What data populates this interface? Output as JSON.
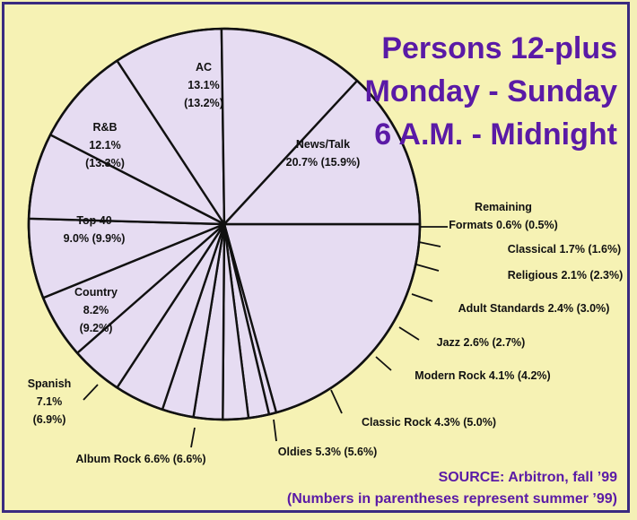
{
  "title_lines": [
    "Persons 12-plus",
    "Monday - Sunday",
    "6 A.M. - Midnight"
  ],
  "source_lines": [
    "SOURCE: Arbitron, fall ’99",
    "(Numbers in parentheses represent summer ’99)"
  ],
  "colors": {
    "slice_fill": "#e6dcf2",
    "title": "#5a1aa6",
    "background": "#f6f2b4",
    "border": "#3a2a80"
  },
  "chart_data": {
    "type": "pie",
    "series_names": [
      "fall ’99",
      "summer ’99"
    ],
    "slices": [
      {
        "name": "News/Talk",
        "value": 20.7,
        "summer": 15.9,
        "label_lines": [
          "News/Talk",
          "20.7% (15.9%)"
        ]
      },
      {
        "name": "Remaining Formats",
        "value": 0.6,
        "summer": 0.5,
        "label_lines": [
          "Remaining",
          "Formats 0.6% (0.5%)"
        ]
      },
      {
        "name": "Classical",
        "value": 1.7,
        "summer": 1.6,
        "label_lines": [
          "Classical 1.7% (1.6%)"
        ]
      },
      {
        "name": "Religious",
        "value": 2.1,
        "summer": 2.3,
        "label_lines": [
          "Religious 2.1% (2.3%)"
        ]
      },
      {
        "name": "Adult Standards",
        "value": 2.4,
        "summer": 3.0,
        "label_lines": [
          "Adult Standards 2.4% (3.0%)"
        ]
      },
      {
        "name": "Jazz",
        "value": 2.6,
        "summer": 2.7,
        "label_lines": [
          "Jazz 2.6% (2.7%)"
        ]
      },
      {
        "name": "Modern Rock",
        "value": 4.1,
        "summer": 4.2,
        "label_lines": [
          "Modern Rock 4.1% (4.2%)"
        ]
      },
      {
        "name": "Classic Rock",
        "value": 4.3,
        "summer": 5.0,
        "label_lines": [
          "Classic Rock 4.3% (5.0%)"
        ]
      },
      {
        "name": "Oldies",
        "value": 5.3,
        "summer": 5.6,
        "label_lines": [
          "Oldies 5.3% (5.6%)"
        ]
      },
      {
        "name": "Album Rock",
        "value": 6.6,
        "summer": 6.6,
        "label_lines": [
          "Album Rock 6.6% (6.6%)"
        ]
      },
      {
        "name": "Spanish",
        "value": 7.1,
        "summer": 6.9,
        "label_lines": [
          "Spanish",
          "7.1%",
          "(6.9%)"
        ]
      },
      {
        "name": "Country",
        "value": 8.2,
        "summer": 9.2,
        "label_lines": [
          "Country",
          "8.2%",
          "(9.2%)"
        ]
      },
      {
        "name": "Top 40",
        "value": 9.0,
        "summer": 9.9,
        "label_lines": [
          "Top 40",
          "9.0% (9.9%)"
        ]
      },
      {
        "name": "R&B",
        "value": 12.1,
        "summer": 13.3,
        "label_lines": [
          "R&B",
          "12.1%",
          "(13.3%)"
        ]
      },
      {
        "name": "AC",
        "value": 13.1,
        "summer": 13.2,
        "label_lines": [
          "AC",
          "13.1%",
          "(13.2%)"
        ]
      }
    ]
  }
}
